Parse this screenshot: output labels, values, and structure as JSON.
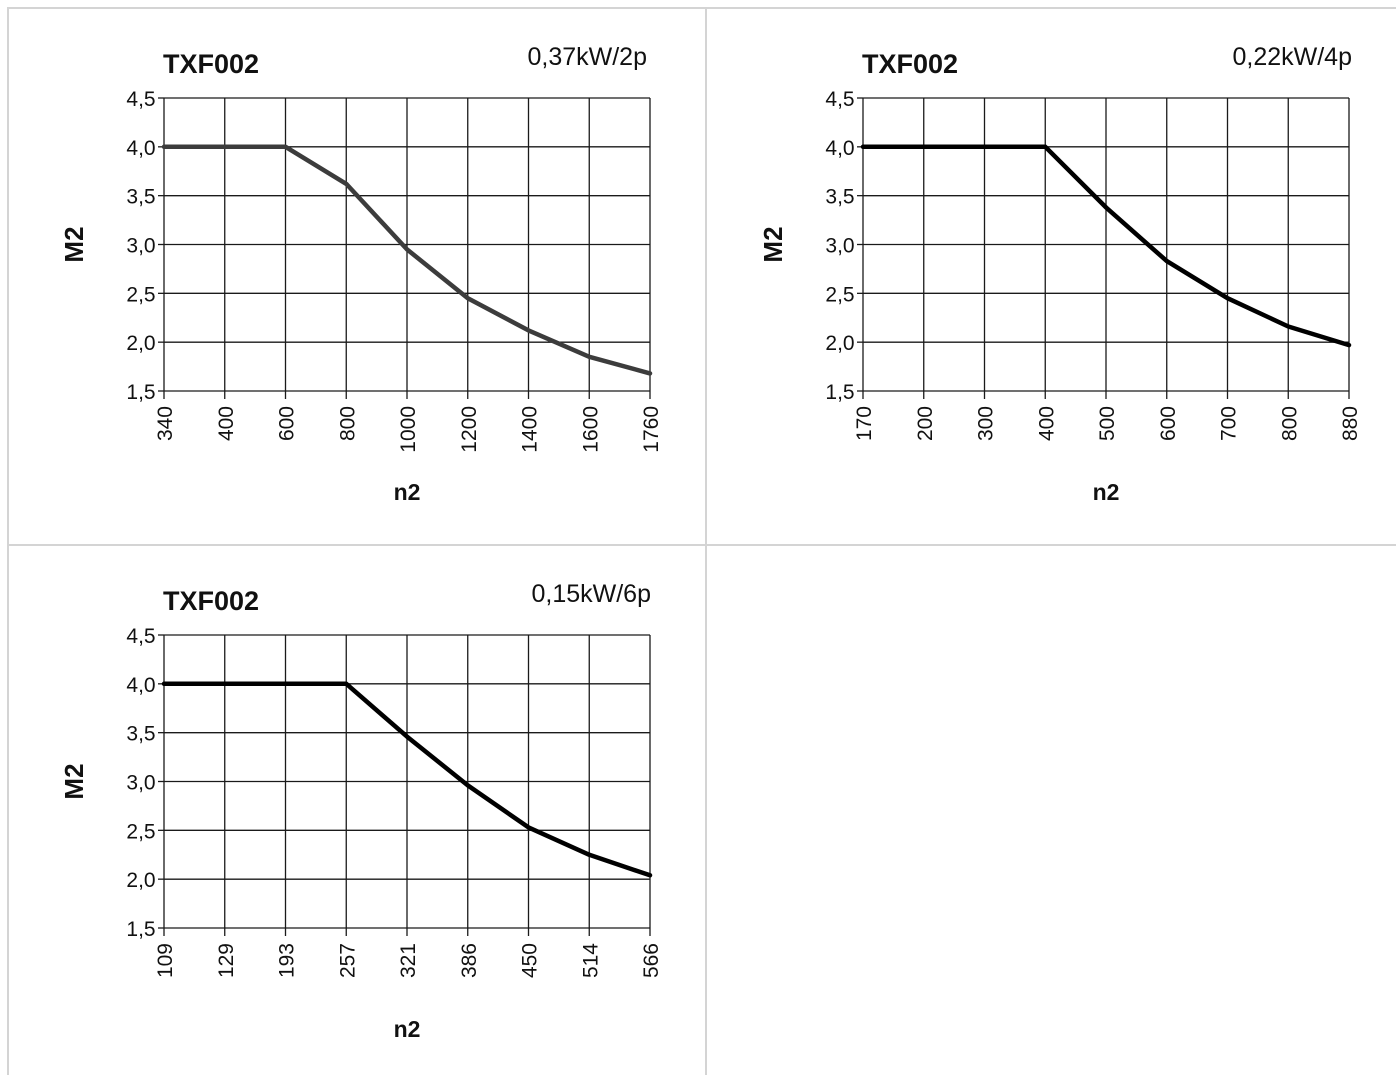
{
  "chart_data": [
    {
      "type": "line",
      "title": "TXF002",
      "subtitle": "0,37kW/2p",
      "xlabel": "n2",
      "ylabel": "M2",
      "categories": [
        "340",
        "400",
        "600",
        "800",
        "1000",
        "1200",
        "1400",
        "1600",
        "1760"
      ],
      "yticks": [
        "1,5",
        "2,0",
        "2,5",
        "3,0",
        "3,5",
        "4,0",
        "4,5"
      ],
      "ylim": [
        1.5,
        4.5
      ],
      "grid": true,
      "line_color": "#3c3c3c",
      "series": [
        {
          "values": [
            4.0,
            4.0,
            4.0,
            3.62,
            2.95,
            2.45,
            2.12,
            1.85,
            1.68
          ]
        }
      ]
    },
    {
      "type": "line",
      "title": "TXF002",
      "subtitle": "0,22kW/4p",
      "xlabel": "n2",
      "ylabel": "M2",
      "categories": [
        "170",
        "200",
        "300",
        "400",
        "500",
        "600",
        "700",
        "800",
        "880"
      ],
      "yticks": [
        "1,5",
        "2,0",
        "2,5",
        "3,0",
        "3,5",
        "4,0",
        "4,5"
      ],
      "ylim": [
        1.5,
        4.5
      ],
      "grid": true,
      "line_color": "#000000",
      "series": [
        {
          "values": [
            4.0,
            4.0,
            4.0,
            4.0,
            3.38,
            2.83,
            2.45,
            2.16,
            1.97
          ]
        }
      ]
    },
    {
      "type": "line",
      "title": "TXF002",
      "subtitle": "0,15kW/6p",
      "xlabel": "n2",
      "ylabel": "M2",
      "categories": [
        "109",
        "129",
        "193",
        "257",
        "321",
        "386",
        "450",
        "514",
        "566"
      ],
      "yticks": [
        "1,5",
        "2,0",
        "2,5",
        "3,0",
        "3,5",
        "4,0",
        "4,5"
      ],
      "ylim": [
        1.5,
        4.5
      ],
      "grid": true,
      "line_color": "#000000",
      "series": [
        {
          "values": [
            4.0,
            4.0,
            4.0,
            4.0,
            3.46,
            2.96,
            2.53,
            2.25,
            2.04
          ]
        }
      ]
    }
  ]
}
